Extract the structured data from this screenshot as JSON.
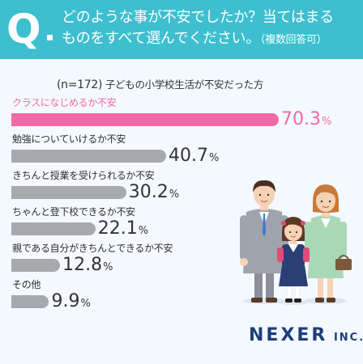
{
  "question": {
    "mark": "Q",
    "line1": "どのような事が不安でしたか？当てはまる",
    "line2": "ものをすべて選んでください。",
    "note": "（複数回答可）"
  },
  "sample": {
    "n": "(n=172)",
    "description": "子どもの小学校生活が不安だった方"
  },
  "colors": {
    "header": "#3dbfcf",
    "highlight_bar": "#f06aa6",
    "bar": "#a7a9ac",
    "highlight_value": "#f06aa6",
    "value": "#333333",
    "background": "#f4f9ff"
  },
  "chart_data": {
    "type": "bar",
    "orientation": "horizontal",
    "title": "",
    "xlabel": "",
    "ylabel": "",
    "unit": "%",
    "xlim": [
      0,
      100
    ],
    "grid": false,
    "categories": [
      "クラスになじめるか不安",
      "勉強についていけるか不安",
      "きちんと授業を受けられるか不安",
      "ちゃんと登下校できるか不安",
      "親である自分がきちんとできるか不安",
      "その他"
    ],
    "values": [
      70.3,
      40.7,
      30.2,
      22.1,
      12.8,
      9.9
    ],
    "value_labels": [
      "70.3",
      "40.7",
      "30.2",
      "22.1",
      "12.8",
      "9.9"
    ],
    "highlight_index": 0
  },
  "illustration": {
    "name": "family-illustration"
  },
  "logo": {
    "main": "NEXER",
    "sub": "INC."
  }
}
